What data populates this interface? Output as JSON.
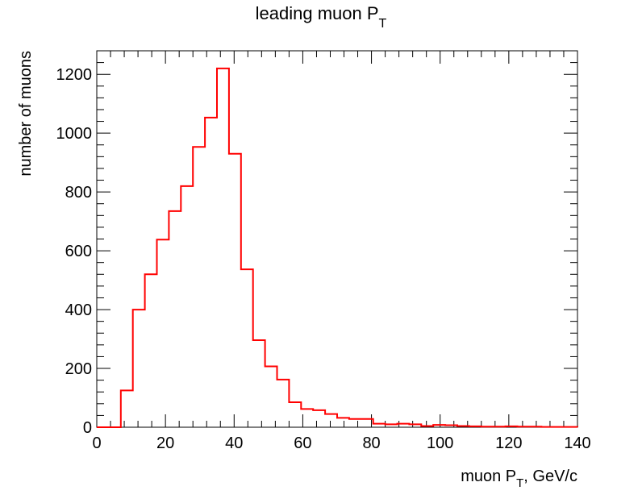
{
  "chart_data": {
    "type": "histogram",
    "title_main": "leading muon P",
    "title_sub": "T",
    "xlabel_main": "muon P",
    "xlabel_sub": "T",
    "xlabel_suffix": ", GeV/c",
    "ylabel": "number of muons",
    "xlim": [
      0,
      140
    ],
    "ylim": [
      0,
      1280
    ],
    "bin_width": 3.5,
    "bin_start": 0,
    "line_color": "#ff0000",
    "x_ticks": [
      0,
      20,
      40,
      60,
      80,
      100,
      120,
      140
    ],
    "x_tick_labels": [
      "0",
      "20",
      "40",
      "60",
      "80",
      "100",
      "120",
      "140"
    ],
    "y_ticks": [
      0,
      200,
      400,
      600,
      800,
      1000,
      1200
    ],
    "y_tick_labels": [
      "0",
      "200",
      "400",
      "600",
      "800",
      "1000",
      "1200"
    ],
    "values": [
      0,
      0,
      125,
      400,
      520,
      638,
      735,
      820,
      953,
      1053,
      1220,
      930,
      537,
      296,
      207,
      162,
      85,
      62,
      58,
      45,
      32,
      28,
      28,
      12,
      10,
      12,
      10,
      4,
      8,
      7,
      4,
      3,
      2,
      2,
      3,
      2,
      2,
      1,
      1,
      1
    ]
  }
}
